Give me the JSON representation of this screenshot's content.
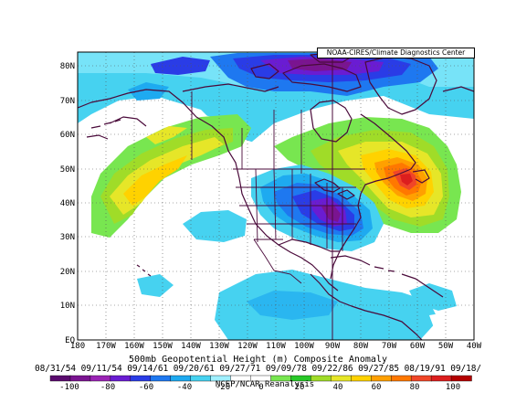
{
  "header": {
    "credit": "NOAA-CIRES/Climate Diagnostics Center"
  },
  "map": {
    "lat_labels": [
      "80N",
      "70N",
      "60N",
      "50N",
      "40N",
      "30N",
      "20N",
      "10N",
      "EQ"
    ],
    "lon_labels": [
      "180",
      "170W",
      "160W",
      "150W",
      "140W",
      "130W",
      "120W",
      "110W",
      "100W",
      "90W",
      "80W",
      "70W",
      "60W",
      "50W",
      "40W"
    ]
  },
  "caption": {
    "title": "500mb Geopotential Height (m) Composite Anomaly",
    "dates": "08/31/54 09/11/54 09/14/61 09/20/61 09/27/71 09/09/78 09/22/86 09/27/85 08/19/91 09/18/"
  },
  "colorbar": {
    "ticks": [
      "-100",
      "-80",
      "-60",
      "-40",
      "-20",
      "0",
      "20",
      "40",
      "60",
      "80",
      "100"
    ],
    "colors": [
      "#5a0a6e",
      "#7a1490",
      "#9a23b4",
      "#6a1cd2",
      "#2a3ce6",
      "#1e78f0",
      "#1eaaf0",
      "#46d2f0",
      "#a0f0ff",
      "#ffffff",
      "#ffffff",
      "#78e650",
      "#28c828",
      "#a0dc28",
      "#e6e628",
      "#ffd200",
      "#ffa000",
      "#ff7800",
      "#f04628",
      "#dc1e1e",
      "#b40000"
    ],
    "footer": "NCEP/NCAR Reanalysis"
  }
}
